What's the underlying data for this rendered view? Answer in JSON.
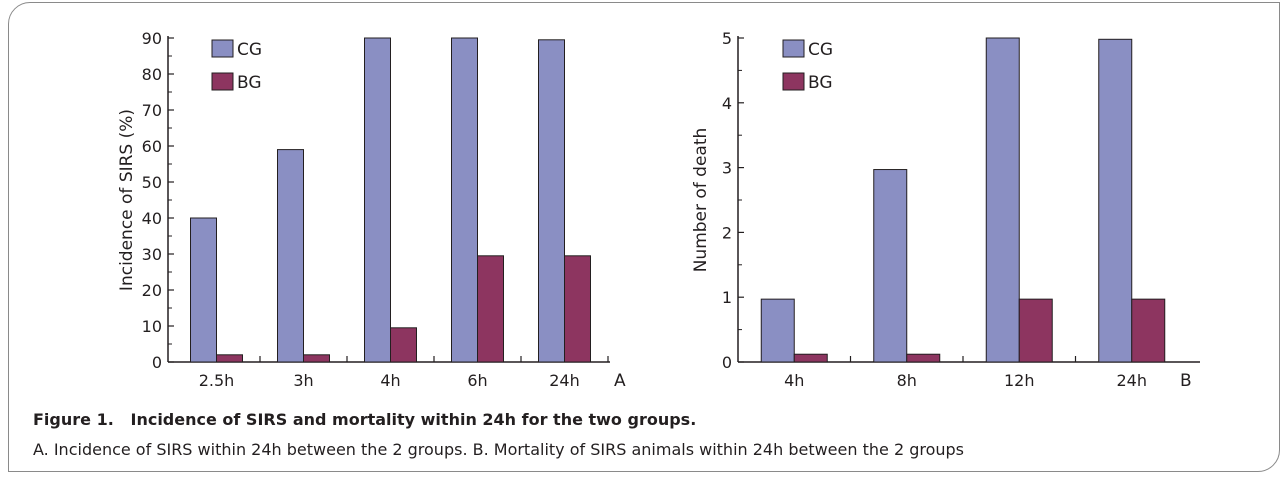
{
  "colors": {
    "CG": "#8a8fc3",
    "BG": "#8d3560"
  },
  "chart_data": [
    {
      "type": "bar",
      "panel_label": "A",
      "title": "",
      "xlabel": "",
      "ylabel": "Incidence of SIRS (%)",
      "ylim": [
        0,
        90
      ],
      "yticks": [
        0,
        10,
        20,
        30,
        40,
        50,
        60,
        70,
        80,
        90
      ],
      "categories": [
        "2.5h",
        "3h",
        "4h",
        "6h",
        "24h"
      ],
      "series": [
        {
          "name": "CG",
          "values": [
            40,
            59,
            90,
            90,
            89.5
          ]
        },
        {
          "name": "BG",
          "values": [
            2,
            2,
            9.5,
            29.5,
            29.5
          ]
        }
      ],
      "legend_position": "top-left",
      "grid": false
    },
    {
      "type": "bar",
      "panel_label": "B",
      "title": "",
      "xlabel": "",
      "ylabel": "Number of death",
      "ylim": [
        0,
        5
      ],
      "yticks": [
        0,
        1,
        2,
        3,
        4,
        5
      ],
      "categories": [
        "4h",
        "8h",
        "12h",
        "24h"
      ],
      "series": [
        {
          "name": "CG",
          "values": [
            0.97,
            2.97,
            5,
            4.98
          ]
        },
        {
          "name": "BG",
          "values": [
            0.12,
            0.12,
            0.97,
            0.97
          ]
        }
      ],
      "legend_position": "top-left",
      "grid": false
    }
  ],
  "caption": {
    "title": "Figure 1.   Incidence of SIRS and mortality within 24h for the two groups.",
    "text": "A. Incidence of SIRS within 24h between the 2 groups. B. Mortality of SIRS animals within 24h between the 2 groups"
  }
}
